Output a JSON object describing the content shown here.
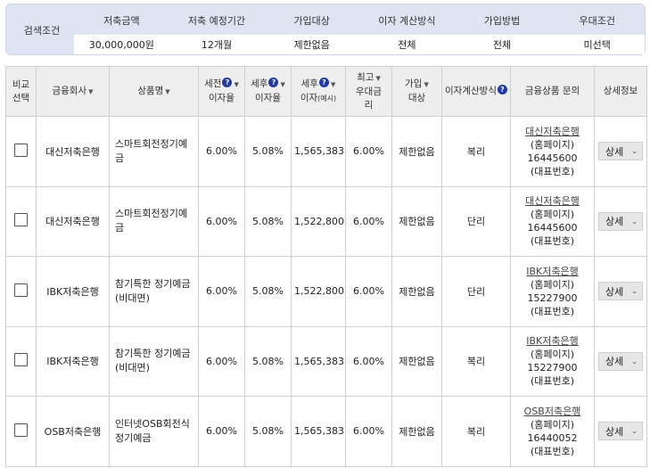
{
  "conditions": {
    "label": "검색조건",
    "headers": [
      "저축금액",
      "저축 예정기간",
      "가입대상",
      "이자 계산방식",
      "가입방법",
      "우대조건"
    ],
    "values": [
      "30,000,000원",
      "12개월",
      "제한없음",
      "전체",
      "전체",
      "미선택"
    ]
  },
  "table": {
    "headers": {
      "compare": [
        "비교",
        "선택"
      ],
      "company": "금융회사",
      "product": "상품명",
      "pre_tax": [
        "세전",
        "이자율"
      ],
      "after_tax_rate": [
        "세후",
        "이자율"
      ],
      "after_tax_interest": [
        "세후",
        "이자",
        "(예시)"
      ],
      "max_pref": [
        "최고",
        "우대금",
        "리"
      ],
      "target": [
        "가입",
        "대상"
      ],
      "calc": "이자계산방식",
      "inquiry": "금융상품 문의",
      "detail": "상세정보"
    },
    "help_mark": "?",
    "sort_mark": "▼",
    "rows": [
      {
        "company": "대신저축은행",
        "product": "스마트회전정기예금",
        "pre_tax": "6.00%",
        "after_tax_rate": "5.08%",
        "interest": "1,565,383",
        "max_pref": "6.00%",
        "target": "제한없음",
        "calc": "복리",
        "inq_name": "대신저축은행",
        "inq_hp": "(홈페이지)",
        "inq_tel": "16445600",
        "inq_rep": "(대표번호)",
        "detail": "상세"
      },
      {
        "company": "대신저축은행",
        "product": "스마트회전정기예금",
        "pre_tax": "6.00%",
        "after_tax_rate": "5.08%",
        "interest": "1,522,800",
        "max_pref": "6.00%",
        "target": "제한없음",
        "calc": "단리",
        "inq_name": "대신저축은행",
        "inq_hp": "(홈페이지)",
        "inq_tel": "16445600",
        "inq_rep": "(대표번호)",
        "detail": "상세"
      },
      {
        "company": "IBK저축은행",
        "product": "참기특한 정기예금(비대면)",
        "pre_tax": "6.00%",
        "after_tax_rate": "5.08%",
        "interest": "1,522,800",
        "max_pref": "6.00%",
        "target": "제한없음",
        "calc": "단리",
        "inq_name": "IBK저축은행",
        "inq_hp": "(홈페이지)",
        "inq_tel": "15227900",
        "inq_rep": "(대표번호)",
        "detail": "상세"
      },
      {
        "company": "IBK저축은행",
        "product": "참기특한 정기예금(비대면)",
        "pre_tax": "6.00%",
        "after_tax_rate": "5.08%",
        "interest": "1,565,383",
        "max_pref": "6.00%",
        "target": "제한없음",
        "calc": "복리",
        "inq_name": "IBK저축은행",
        "inq_hp": "(홈페이지)",
        "inq_tel": "15227900",
        "inq_rep": "(대표번호)",
        "detail": "상세"
      },
      {
        "company": "OSB저축은행",
        "product": "인터넷OSB회전식정기예금",
        "pre_tax": "6.00%",
        "after_tax_rate": "5.08%",
        "interest": "1,565,383",
        "max_pref": "6.00%",
        "target": "제한없음",
        "calc": "복리",
        "inq_name": "OSB저축은행",
        "inq_hp": "(홈페이지)",
        "inq_tel": "16440052",
        "inq_rep": "(대표번호)",
        "detail": "상세"
      }
    ]
  }
}
